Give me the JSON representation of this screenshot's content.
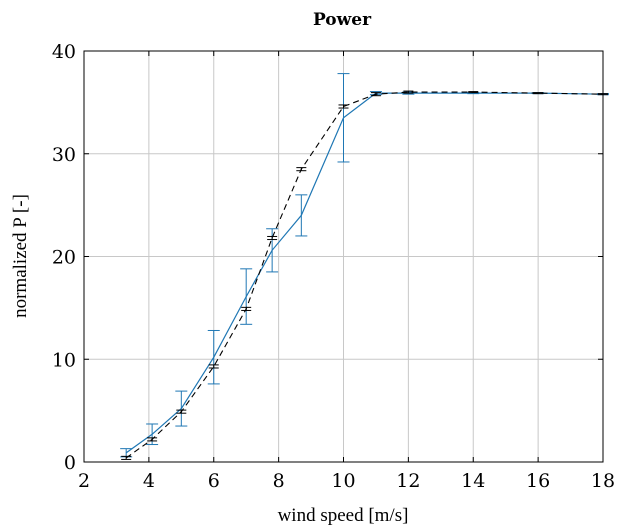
{
  "chart_data": {
    "type": "line",
    "title": "Power",
    "xlabel": "wind speed [m/s]",
    "ylabel": "normalized P [-]",
    "xlim": [
      2,
      18
    ],
    "ylim": [
      0,
      40
    ],
    "xticks": [
      2,
      4,
      6,
      8,
      10,
      12,
      14,
      16,
      18
    ],
    "yticks": [
      0,
      10,
      20,
      30,
      40
    ],
    "grid": true,
    "series": [
      {
        "style": "solid",
        "color": "#1f77b4",
        "x": [
          3.3,
          4.1,
          5.0,
          6.0,
          7.0,
          7.8,
          8.7,
          10.0,
          11.0,
          12.0,
          14.0,
          16.0,
          18.0
        ],
        "y": [
          0.9,
          2.7,
          5.2,
          10.2,
          16.1,
          20.6,
          24.0,
          33.5,
          35.9,
          35.9,
          35.9,
          35.9,
          35.8
        ],
        "err": [
          0.4,
          1.0,
          1.7,
          2.6,
          2.7,
          2.1,
          2.0,
          4.3,
          0.15,
          0.1,
          0.05,
          0.05,
          0.05
        ]
      },
      {
        "style": "dashed",
        "color": "#000000",
        "x": [
          3.3,
          4.1,
          5.0,
          6.0,
          7.0,
          7.8,
          8.7,
          10.0,
          11.0,
          12.0,
          14.0,
          16.0,
          18.0
        ],
        "y": [
          0.4,
          2.2,
          4.9,
          9.3,
          14.9,
          21.8,
          28.5,
          34.6,
          35.8,
          36.0,
          36.0,
          35.9,
          35.8
        ],
        "err": [
          0.15,
          0.15,
          0.15,
          0.15,
          0.15,
          0.15,
          0.15,
          0.15,
          0.15,
          0.1,
          0.05,
          0.05,
          0.05
        ]
      }
    ]
  }
}
